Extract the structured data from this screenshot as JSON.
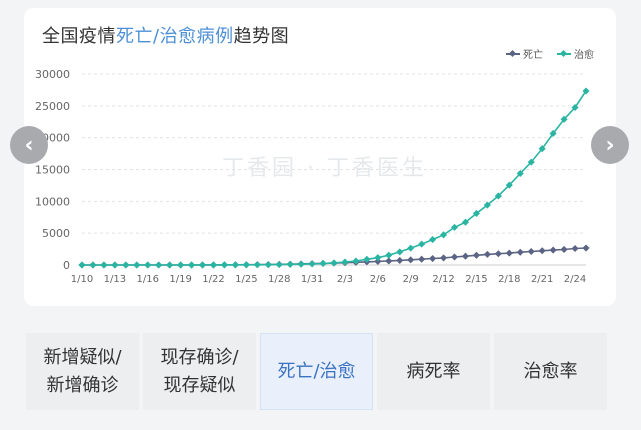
{
  "title": {
    "part1": "全国疫情",
    "highlight": "死亡/治愈病例",
    "part2": "趋势图"
  },
  "legend": {
    "death": "死亡",
    "cure": "治愈"
  },
  "colors": {
    "death": "#5b6484",
    "cure": "#2ab5a3",
    "accent": "#4d8fd6",
    "grid": "#e3e3e3"
  },
  "watermark": "丁香园 · 丁香医生",
  "nav": {
    "prev_icon": "‹",
    "next_icon": "›"
  },
  "tabs": [
    {
      "line1": "新增疑似/",
      "line2": "新增确诊"
    },
    {
      "line1": "现存确诊/",
      "line2": "现存疑似"
    },
    {
      "line1": "死亡/治愈",
      "line2": ""
    },
    {
      "line1": "病死率",
      "line2": ""
    },
    {
      "line1": "治愈率",
      "line2": ""
    }
  ],
  "chart_data": {
    "type": "line",
    "x_ticks": [
      "1/10",
      "1/13",
      "1/16",
      "1/19",
      "1/22",
      "1/25",
      "1/28",
      "1/31",
      "2/3",
      "2/6",
      "2/9",
      "2/12",
      "2/15",
      "2/18",
      "2/21",
      "2/24"
    ],
    "y_ticks": [
      0,
      5000,
      10000,
      15000,
      20000,
      25000,
      30000
    ],
    "ylim": [
      0,
      30000
    ],
    "xlabel": "",
    "ylabel": "",
    "grid": "horizontal",
    "legend_position": "top-right",
    "series": [
      {
        "name": "死亡",
        "values": [
          0,
          0,
          0,
          0,
          0,
          0,
          0,
          0,
          0,
          0,
          0,
          6,
          9,
          17,
          25,
          41,
          56,
          80,
          106,
          132,
          170,
          213,
          259,
          304,
          361,
          425,
          490,
          563,
          637,
          722,
          811,
          908,
          1016,
          1113,
          1259,
          1380,
          1523,
          1665,
          1770,
          1868,
          2004,
          2118,
          2236,
          2345,
          2442,
          2592,
          2663
        ]
      },
      {
        "name": "治愈",
        "values": [
          2,
          2,
          2,
          2,
          2,
          2,
          2,
          2,
          2,
          6,
          9,
          12,
          15,
          25,
          28,
          34,
          38,
          49,
          60,
          103,
          124,
          171,
          243,
          328,
          475,
          632,
          892,
          1153,
          1540,
          2050,
          2649,
          3281,
          3996,
          4740,
          5911,
          6723,
          8096,
          9419,
          10844,
          12552,
          14376,
          16155,
          18264,
          20659,
          22888,
          24734,
          27323
        ]
      }
    ]
  }
}
